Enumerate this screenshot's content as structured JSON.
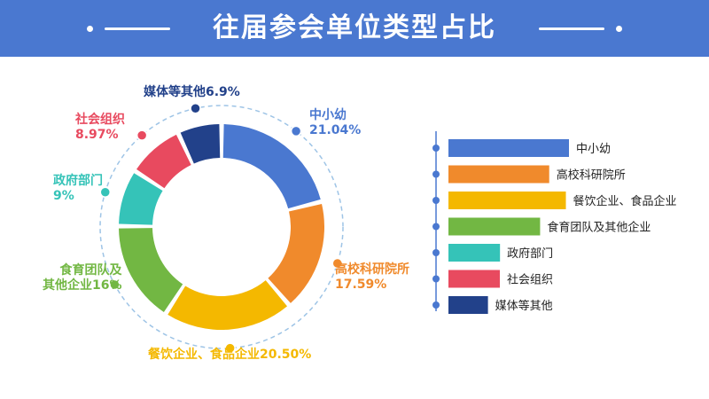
{
  "title": "往届参会单位类型占比",
  "chart_data": {
    "type": "pie",
    "categories": [
      "中小幼",
      "高校科研院所",
      "餐饮企业、食品企业",
      "食育团队及其他企业",
      "政府部门",
      "社会组织",
      "媒体等其他"
    ],
    "values": [
      21.04,
      17.59,
      20.5,
      16,
      9,
      8.97,
      6.9
    ],
    "value_labels": [
      "21.04%",
      "17.59%",
      "20.50%",
      "16%",
      "9%",
      "8.97%",
      "6.9%"
    ],
    "colors": [
      "#4a78d0",
      "#f08a2c",
      "#f4b800",
      "#72b743",
      "#35c3b8",
      "#e84a5f",
      "#22418a"
    ],
    "legend_position": "right"
  }
}
